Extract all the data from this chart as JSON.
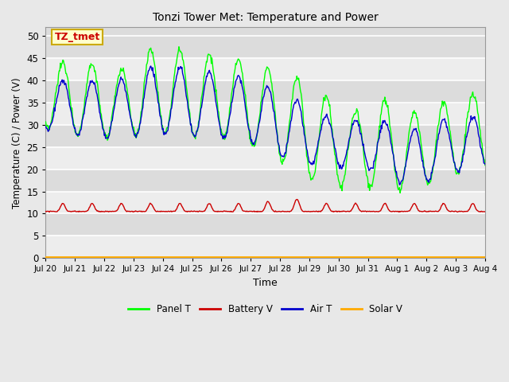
{
  "title": "Tonzi Tower Met: Temperature and Power",
  "xlabel": "Time",
  "ylabel": "Temperature (C) / Power (V)",
  "ylim": [
    0,
    52
  ],
  "yticks": [
    0,
    5,
    10,
    15,
    20,
    25,
    30,
    35,
    40,
    45,
    50
  ],
  "xtick_labels": [
    "Jul 20",
    "Jul 21",
    "Jul 22",
    "Jul 23",
    "Jul 24",
    "Jul 25",
    "Jul 26",
    "Jul 27",
    "Jul 28",
    "Jul 29",
    "Jul 30",
    "Jul 31",
    "Aug 1",
    "Aug 2",
    "Aug 3",
    "Aug 4"
  ],
  "bg_color": "#e8e8e8",
  "plot_bg_color": "#dcdcdc",
  "annotation_text": "TZ_tmet",
  "annotation_bg": "#ffffcc",
  "annotation_border": "#ccaa00",
  "annotation_text_color": "#cc0000",
  "colors": {
    "panel_t": "#00ff00",
    "battery_v": "#cc0000",
    "air_t": "#0000cc",
    "solar_v": "#ffaa00"
  },
  "legend_labels": [
    "Panel T",
    "Battery V",
    "Air T",
    "Solar V"
  ],
  "n_days": 15,
  "panel_t_peaks": [
    44,
    44,
    42,
    47,
    47,
    46,
    45,
    43,
    41,
    37,
    33,
    36,
    33,
    35,
    37
  ],
  "panel_t_mins": [
    29,
    27,
    27,
    28,
    28,
    27,
    27,
    24,
    20,
    16,
    16,
    16,
    15,
    18,
    20
  ],
  "air_t_peaks": [
    40,
    40,
    40,
    43,
    43,
    42,
    41,
    39,
    36,
    32,
    31,
    31,
    29,
    31,
    32
  ],
  "air_t_mins": [
    29,
    27,
    27,
    28,
    28,
    27,
    27,
    25,
    21,
    21,
    20,
    20,
    15,
    19,
    20
  ],
  "battery_base": 10.5,
  "solar_v_val": 0.3
}
